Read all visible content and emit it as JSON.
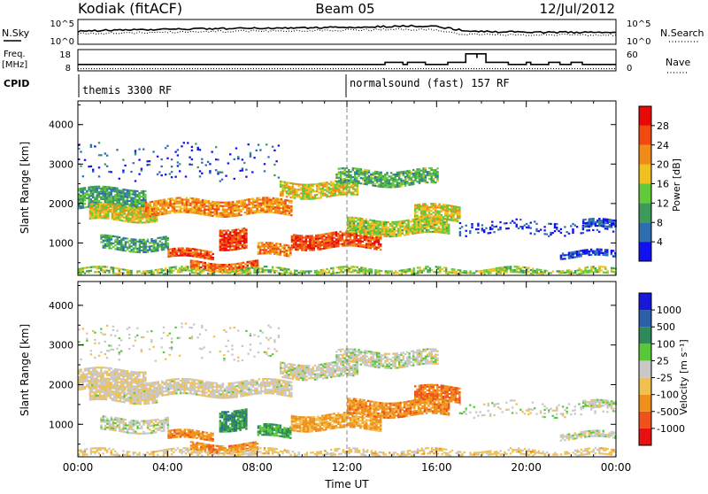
{
  "header": {
    "station": "Kodiak (fitACF)",
    "beam": "Beam 05",
    "date": "12/Jul/2012"
  },
  "noise_panel": {
    "left_label": "N.Sky",
    "left_ticks": [
      "10^5",
      "10^0"
    ],
    "right_ticks": [
      "10^5",
      "10^0"
    ],
    "right_label": "N.Search"
  },
  "freq_panel": {
    "left_label_1": "Freq.",
    "left_label_2": "[MHz]",
    "left_ticks": [
      "18",
      "8"
    ],
    "right_ticks": [
      "60",
      "0"
    ],
    "right_label": "Nave"
  },
  "cpid": {
    "label": "CPID",
    "segments": [
      {
        "text": "themis 3300 RF",
        "start_hour": 0
      },
      {
        "text": "normalsound (fast) 157 RF",
        "start_hour": 12
      }
    ]
  },
  "colors": {
    "power": [
      "#1010f0",
      "#2c6eb0",
      "#3d9a5a",
      "#62c93a",
      "#f0c020",
      "#f08a18",
      "#f04a10",
      "#e80808"
    ],
    "velocity": [
      "#e81010",
      "#f0501a",
      "#f0901c",
      "#f0c050",
      "#c8c8c8",
      "#58c838",
      "#2e8a58",
      "#2a60a8",
      "#1818d8"
    ],
    "ground_scatter": "#b4b4b4"
  },
  "power_scale": {
    "title": "Power [dB]",
    "ticks": [
      "4",
      "8",
      "12",
      "16",
      "20",
      "24",
      "28"
    ]
  },
  "velocity_scale": {
    "title": "Velocity [m s⁻¹]",
    "ticks": [
      "-1000",
      "-500",
      "-100",
      "-25",
      "25",
      "100",
      "500",
      "1000"
    ]
  },
  "chart_data": [
    {
      "type": "heatmap",
      "panel": "power",
      "ylabel": "Slant Range [km]",
      "xlabel": "Time UT",
      "ylim": [
        180,
        4600
      ],
      "xlim": [
        0,
        24
      ],
      "x_ticks": [
        "00:00",
        "04:00",
        "08:00",
        "12:00",
        "16:00",
        "20:00",
        "00:00"
      ],
      "y_ticks": [
        "1000",
        "2000",
        "3000",
        "4000"
      ],
      "features": [
        {
          "t0": 0.0,
          "t1": 3.0,
          "r": [
            1850,
            2350
          ],
          "level": 0.3,
          "density": 0.9
        },
        {
          "t0": 0.5,
          "t1": 3.5,
          "r": [
            1550,
            1950
          ],
          "level": 0.55,
          "density": 0.9
        },
        {
          "t0": 3.0,
          "t1": 9.5,
          "r": [
            1700,
            2100
          ],
          "level": 0.7,
          "density": 0.85
        },
        {
          "t0": 9.0,
          "t1": 12.5,
          "r": [
            2150,
            2550
          ],
          "level": 0.55,
          "density": 0.8
        },
        {
          "t0": 11.5,
          "t1": 16.0,
          "r": [
            2450,
            2850
          ],
          "level": 0.35,
          "density": 0.75
        },
        {
          "t0": 1.0,
          "t1": 4.0,
          "r": [
            800,
            1150
          ],
          "level": 0.3,
          "density": 0.75
        },
        {
          "t0": 4.0,
          "t1": 6.0,
          "r": [
            600,
            800
          ],
          "level": 0.85,
          "density": 0.9
        },
        {
          "t0": 5.0,
          "t1": 8.0,
          "r": [
            300,
            500
          ],
          "level": 0.8,
          "density": 0.9
        },
        {
          "t0": 6.3,
          "t1": 7.5,
          "r": [
            850,
            1350
          ],
          "level": 0.9,
          "density": 0.9
        },
        {
          "t0": 8.0,
          "t1": 9.5,
          "r": [
            650,
            950
          ],
          "level": 0.75,
          "density": 0.85
        },
        {
          "t0": 9.5,
          "t1": 13.5,
          "r": [
            850,
            1250
          ],
          "level": 0.85,
          "density": 0.9
        },
        {
          "t0": 12.0,
          "t1": 16.5,
          "r": [
            1200,
            1600
          ],
          "level": 0.5,
          "density": 0.9
        },
        {
          "t0": 15.0,
          "t1": 17.0,
          "r": [
            1550,
            1950
          ],
          "level": 0.55,
          "density": 0.85
        },
        {
          "t0": 17.0,
          "t1": 24.0,
          "r": [
            1200,
            1550
          ],
          "level": 0.05,
          "density": 0.2
        },
        {
          "t0": 22.5,
          "t1": 24.0,
          "r": [
            1350,
            1550
          ],
          "level": 0.1,
          "density": 0.7
        },
        {
          "t0": 21.5,
          "t1": 24.0,
          "r": [
            620,
            760
          ],
          "level": 0.05,
          "density": 0.75
        },
        {
          "t0": 0.0,
          "t1": 24.0,
          "r": [
            180,
            320
          ],
          "level": 0.45,
          "density": 0.7
        },
        {
          "t0": 0.0,
          "t1": 9.0,
          "r": [
            2600,
            3500
          ],
          "level": 0.1,
          "density": 0.08
        }
      ]
    },
    {
      "type": "heatmap",
      "panel": "velocity",
      "ylabel": "Slant Range [km]",
      "xlabel": "Time UT",
      "ylim": [
        180,
        4600
      ],
      "xlim": [
        0,
        24
      ],
      "x_ticks": [
        "00:00",
        "04:00",
        "08:00",
        "12:00",
        "16:00",
        "20:00",
        "00:00"
      ],
      "y_ticks": [
        "1000",
        "2000",
        "3000",
        "4000"
      ],
      "features": [
        {
          "t0": 0.0,
          "t1": 3.0,
          "r": [
            1850,
            2350
          ],
          "level": 0.45,
          "density": 0.85
        },
        {
          "t0": 0.5,
          "t1": 3.5,
          "r": [
            1550,
            1950
          ],
          "level": 0.47,
          "density": 0.85
        },
        {
          "t0": 3.0,
          "t1": 9.5,
          "r": [
            1700,
            2100
          ],
          "level": 0.47,
          "density": 0.85
        },
        {
          "t0": 9.0,
          "t1": 12.5,
          "r": [
            2150,
            2550
          ],
          "level": 0.5,
          "density": 0.8
        },
        {
          "t0": 11.5,
          "t1": 16.0,
          "r": [
            2450,
            2850
          ],
          "level": 0.5,
          "density": 0.75
        },
        {
          "t0": 1.0,
          "t1": 4.0,
          "r": [
            800,
            1150
          ],
          "level": 0.5,
          "density": 0.7
        },
        {
          "t0": 4.0,
          "t1": 6.0,
          "r": [
            600,
            800
          ],
          "level": 0.25,
          "density": 0.9
        },
        {
          "t0": 5.0,
          "t1": 8.0,
          "r": [
            300,
            500
          ],
          "level": 0.25,
          "density": 0.9
        },
        {
          "t0": 6.3,
          "t1": 7.5,
          "r": [
            850,
            1350
          ],
          "level": 0.75,
          "density": 0.9
        },
        {
          "t0": 8.0,
          "t1": 9.5,
          "r": [
            650,
            950
          ],
          "level": 0.7,
          "density": 0.85
        },
        {
          "t0": 9.5,
          "t1": 13.5,
          "r": [
            850,
            1250
          ],
          "level": 0.3,
          "density": 0.9
        },
        {
          "t0": 12.0,
          "t1": 16.5,
          "r": [
            1200,
            1600
          ],
          "level": 0.25,
          "density": 0.9
        },
        {
          "t0": 15.0,
          "t1": 17.0,
          "r": [
            1550,
            1950
          ],
          "level": 0.2,
          "density": 0.85
        },
        {
          "t0": 17.0,
          "t1": 24.0,
          "r": [
            1200,
            1550
          ],
          "level": 0.5,
          "density": 0.2
        },
        {
          "t0": 22.5,
          "t1": 24.0,
          "r": [
            1350,
            1550
          ],
          "level": 0.5,
          "density": 0.7
        },
        {
          "t0": 21.5,
          "t1": 24.0,
          "r": [
            620,
            760
          ],
          "level": 0.5,
          "density": 0.75
        },
        {
          "t0": 0.0,
          "t1": 24.0,
          "r": [
            180,
            320
          ],
          "level": 0.4,
          "density": 0.55
        },
        {
          "t0": 0.0,
          "t1": 9.0,
          "r": [
            2600,
            3500
          ],
          "level": 0.5,
          "density": 0.08
        }
      ]
    }
  ],
  "noise_series": {
    "sky": {
      "x": [
        0,
        1,
        2,
        3,
        4,
        5,
        6,
        7,
        8,
        9,
        10,
        11,
        12,
        13,
        14,
        15,
        16,
        17,
        18,
        19,
        20,
        21,
        22,
        23,
        24
      ],
      "y": [
        2.6,
        2.8,
        2.9,
        2.9,
        3.0,
        3.1,
        3.1,
        3.2,
        3.2,
        3.3,
        3.3,
        3.4,
        3.4,
        3.5,
        3.6,
        3.7,
        3.6,
        2.9,
        2.6,
        2.5,
        2.5,
        2.4,
        2.4,
        2.4,
        2.4
      ]
    },
    "search": {
      "x": [
        0,
        1,
        2,
        3,
        4,
        5,
        6,
        7,
        8,
        9,
        10,
        11,
        12,
        13,
        14,
        15,
        16,
        17,
        18,
        19,
        20,
        21,
        22,
        23,
        24
      ],
      "y": [
        2.1,
        2.2,
        2.3,
        2.3,
        2.4,
        2.5,
        2.6,
        2.6,
        2.7,
        2.7,
        2.8,
        2.8,
        2.9,
        2.9,
        3.0,
        3.0,
        2.8,
        2.1,
        2.0,
        1.9,
        1.9,
        1.9,
        1.9,
        1.9,
        1.9
      ]
    }
  },
  "freq_series": {
    "x": [
      0,
      12,
      12.5,
      13.5,
      13.7,
      14.5,
      14.7,
      15.5,
      16.5,
      17.3,
      17.3,
      17.8,
      17.8,
      18.2,
      18.2,
      19,
      19.2,
      20,
      20.2,
      21,
      21.5,
      22,
      22.5,
      24
    ],
    "y": [
      11,
      11,
      11,
      11,
      12,
      11,
      12,
      11,
      12,
      14,
      16,
      14,
      16,
      14,
      12,
      12,
      11,
      12,
      11,
      12,
      11,
      12,
      11,
      11
    ]
  },
  "nave_series": {
    "x": [
      0,
      24
    ],
    "y": [
      6,
      6
    ]
  }
}
